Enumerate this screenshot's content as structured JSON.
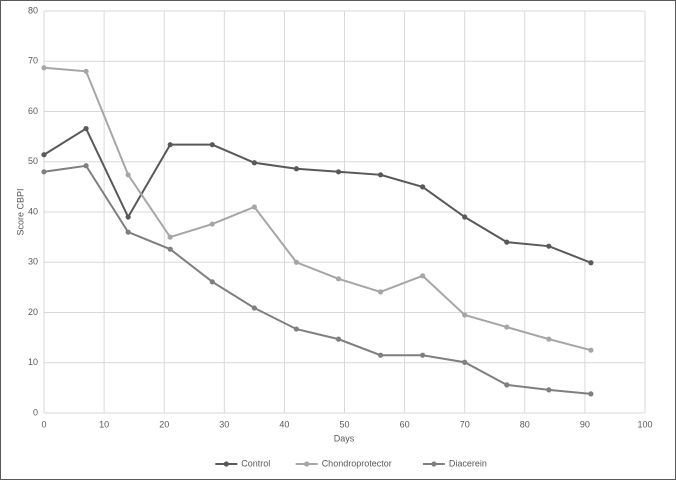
{
  "chart_data": {
    "type": "line",
    "x_label": "Days",
    "y_label": "Score CBPI",
    "x": [
      0,
      7,
      14,
      21,
      28,
      35,
      42,
      49,
      56,
      63,
      70,
      77,
      84,
      91
    ],
    "series": [
      {
        "name": "Control",
        "color": "#595959",
        "values": [
          51.4,
          56.6,
          39,
          53.4,
          53.4,
          49.8,
          48.6,
          48,
          47.4,
          45,
          39,
          34,
          33.2,
          29.9
        ]
      },
      {
        "name": "Chondroprotector",
        "color": "#a6a6a6",
        "values": [
          68.7,
          68,
          47.4,
          35,
          37.6,
          41,
          30,
          26.7,
          24.1,
          27.3,
          19.5,
          17.1,
          14.7,
          12.5
        ]
      },
      {
        "name": "Diacerein",
        "color": "#7f7f7f",
        "values": [
          48,
          49.2,
          36,
          32.6,
          26.1,
          20.9,
          16.7,
          14.7,
          11.5,
          11.5,
          10.1,
          5.6,
          4.6,
          3.8
        ]
      }
    ],
    "xlim": [
      0,
      100
    ],
    "xticks": [
      0,
      10,
      20,
      30,
      40,
      50,
      60,
      70,
      80,
      90,
      100
    ],
    "ylim": [
      0,
      80
    ],
    "yticks": [
      0,
      10,
      20,
      30,
      40,
      50,
      60,
      70,
      80
    ],
    "grid": true,
    "legend": "bottom"
  }
}
